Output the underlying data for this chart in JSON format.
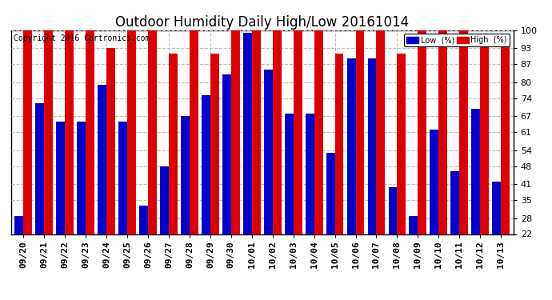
{
  "title": "Outdoor Humidity Daily High/Low 20161014",
  "copyright": "Copyright 2016 Cartronics.com",
  "legend_low_label": "Low  (%)",
  "legend_high_label": "High  (%)",
  "dates": [
    "09/20",
    "09/21",
    "09/22",
    "09/23",
    "09/24",
    "09/25",
    "09/26",
    "09/27",
    "09/28",
    "09/29",
    "09/30",
    "10/01",
    "10/02",
    "10/03",
    "10/04",
    "10/05",
    "10/06",
    "10/07",
    "10/08",
    "10/09",
    "10/10",
    "10/11",
    "10/12",
    "10/13"
  ],
  "low": [
    29,
    72,
    65,
    65,
    79,
    65,
    33,
    48,
    67,
    75,
    83,
    99,
    85,
    68,
    68,
    53,
    89,
    89,
    40,
    29,
    62,
    46,
    70,
    42
  ],
  "high": [
    100,
    100,
    100,
    100,
    93,
    100,
    100,
    91,
    100,
    91,
    100,
    100,
    100,
    100,
    100,
    91,
    100,
    100,
    91,
    100,
    100,
    100,
    96,
    96
  ],
  "low_color": "#0000cc",
  "high_color": "#dd0000",
  "bg_color": "#ffffff",
  "ylim_min": 22,
  "ylim_max": 100,
  "yticks": [
    22,
    28,
    35,
    41,
    48,
    54,
    61,
    67,
    74,
    80,
    87,
    93,
    100
  ],
  "grid_color": "#bbbbbb",
  "title_fontsize": 12,
  "copyright_fontsize": 7,
  "tick_fontsize": 8,
  "bar_width": 0.42
}
